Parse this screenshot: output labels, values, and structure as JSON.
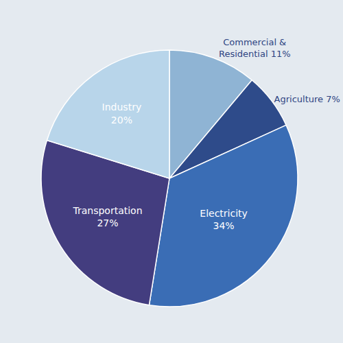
{
  "chart_data": {
    "type": "pie",
    "values": [
      11,
      7,
      34,
      27,
      20
    ],
    "value_labels": [
      "Commercial &\nResidential 11%",
      "Agriculture 7%",
      "Electricity\n34%",
      "Transportation\n27%",
      "Industry\n20%"
    ],
    "colors": [
      "#8fb4d4",
      "#2e4b8a",
      "#3a6db5",
      "#433d7f",
      "#b8d5ea"
    ]
  }
}
